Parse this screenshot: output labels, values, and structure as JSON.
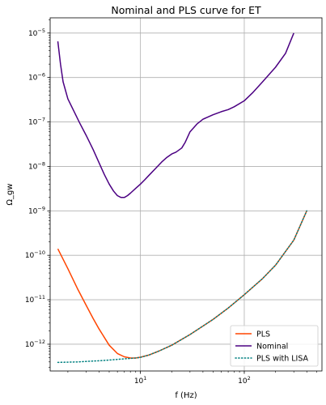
{
  "chart_data": {
    "type": "line",
    "title": "Nominal and PLS curve for ET",
    "xlabel": "f (Hz)",
    "ylabel": "Ω_gw",
    "xscale": "log",
    "yscale": "log",
    "xlim": [
      1.35,
      560
    ],
    "ylim": [
      2.5e-13,
      2.2e-05
    ],
    "grid": true,
    "legend_position": "lower-right",
    "x_ticks": [
      {
        "value": 10,
        "base": "10",
        "exp": "1"
      },
      {
        "value": 100,
        "base": "10",
        "exp": "2"
      }
    ],
    "y_ticks": [
      {
        "value": 1e-12,
        "base": "10",
        "exp": "−12"
      },
      {
        "value": 1e-11,
        "base": "10",
        "exp": "−11"
      },
      {
        "value": 1e-10,
        "base": "10",
        "exp": "−10"
      },
      {
        "value": 1e-09,
        "base": "10",
        "exp": "−9"
      },
      {
        "value": 1e-08,
        "base": "10",
        "exp": "−8"
      },
      {
        "value": 1e-07,
        "base": "10",
        "exp": "−7"
      },
      {
        "value": 1e-06,
        "base": "10",
        "exp": "−6"
      },
      {
        "value": 1e-05,
        "base": "10",
        "exp": "−5"
      }
    ],
    "series": [
      {
        "name": "PLS",
        "color": "#ff4500",
        "style": "solid",
        "x": [
          1.6,
          2.0,
          2.5,
          3.0,
          3.5,
          4.0,
          5.0,
          6.0,
          7.0,
          8.0,
          9.0,
          10,
          12,
          15,
          20,
          30,
          50,
          70,
          100,
          150,
          200,
          300,
          400
        ],
        "y": [
          1.4e-10,
          5e-11,
          1.7e-11,
          7.5e-12,
          3.8e-12,
          2.2e-12,
          9.5e-13,
          6.2e-13,
          5.2e-13,
          4.9e-13,
          4.9e-13,
          5.1e-13,
          5.7e-13,
          7e-13,
          9.5e-13,
          1.65e-12,
          3.6e-12,
          6.5e-12,
          1.3e-11,
          3e-11,
          6e-11,
          2.2e-10,
          1e-09
        ]
      },
      {
        "name": "Nominal",
        "color": "#4b0082",
        "style": "solid",
        "x": [
          1.6,
          1.7,
          1.8,
          2.0,
          2.3,
          2.6,
          3.0,
          3.5,
          4.0,
          4.5,
          5.0,
          5.5,
          6.0,
          6.5,
          7.0,
          7.5,
          8.0,
          9.0,
          10,
          11,
          12,
          14,
          16,
          18,
          20,
          22,
          25,
          27,
          30,
          35,
          40,
          50,
          60,
          70,
          80,
          100,
          120,
          150,
          200,
          250,
          300
        ],
        "y": [
          6.5e-06,
          2e-06,
          8e-07,
          3.3e-07,
          1.7e-07,
          9.5e-08,
          5e-08,
          2.4e-08,
          1.2e-08,
          6.5e-09,
          4e-09,
          2.8e-09,
          2.2e-09,
          2e-09,
          2e-09,
          2.2e-09,
          2.5e-09,
          3.2e-09,
          4e-09,
          5e-09,
          6.2e-09,
          9e-09,
          1.25e-08,
          1.6e-08,
          1.9e-08,
          2.1e-08,
          2.6e-08,
          3.5e-08,
          6e-08,
          9e-08,
          1.15e-07,
          1.45e-07,
          1.7e-07,
          1.9e-07,
          2.2e-07,
          3e-07,
          4.5e-07,
          8e-07,
          1.7e-06,
          3.5e-06,
          1e-05
        ]
      },
      {
        "name": "PLS with LISA",
        "color": "#008080",
        "style": "dotted",
        "x": [
          1.6,
          2.0,
          2.5,
          3.0,
          4.0,
          5.0,
          6.0,
          7.0,
          8.0,
          9.0,
          10,
          12,
          15,
          20,
          30,
          50,
          70,
          100,
          150,
          200,
          300,
          400
        ],
        "y": [
          3.9e-13,
          3.95e-13,
          4e-13,
          4.1e-13,
          4.25e-13,
          4.4e-13,
          4.55e-13,
          4.7e-13,
          4.8e-13,
          4.9e-13,
          5.05e-13,
          5.7e-13,
          7e-13,
          9.5e-13,
          1.65e-12,
          3.6e-12,
          6.5e-12,
          1.3e-11,
          3e-11,
          6e-11,
          2.2e-10,
          1e-09
        ]
      }
    ]
  }
}
